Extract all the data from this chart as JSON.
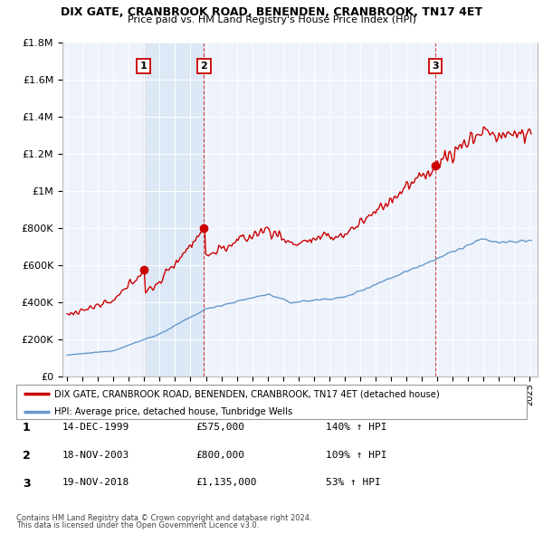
{
  "title": "DIX GATE, CRANBROOK ROAD, BENENDEN, CRANBROOK, TN17 4ET",
  "subtitle": "Price paid vs. HM Land Registry's House Price Index (HPI)",
  "legend_line1": "DIX GATE, CRANBROOK ROAD, BENENDEN, CRANBROOK, TN17 4ET (detached house)",
  "legend_line2": "HPI: Average price, detached house, Tunbridge Wells",
  "footer1": "Contains HM Land Registry data © Crown copyright and database right 2024.",
  "footer2": "This data is licensed under the Open Government Licence v3.0.",
  "sales": [
    {
      "label": "1",
      "date": "14-DEC-1999",
      "price": 575000,
      "pct": "140%",
      "year": 1999.96
    },
    {
      "label": "2",
      "date": "18-NOV-2003",
      "price": 800000,
      "pct": "109%",
      "year": 2003.88
    },
    {
      "label": "3",
      "date": "19-NOV-2018",
      "price": 1135000,
      "pct": "53%",
      "year": 2018.88
    }
  ],
  "table_rows": [
    [
      "1",
      "14-DEC-1999",
      "£575,000",
      "140% ↑ HPI"
    ],
    [
      "2",
      "18-NOV-2003",
      "£800,000",
      "109% ↑ HPI"
    ],
    [
      "3",
      "19-NOV-2018",
      "£1,135,000",
      "53% ↑ HPI"
    ]
  ],
  "red_color": "#cc0000",
  "blue_color": "#6699cc",
  "shade_color": "#dce8f5",
  "background_color": "#eef3fb",
  "ylim": [
    0,
    1800000
  ],
  "xlim_start": 1994.7,
  "xlim_end": 2025.5,
  "yticks": [
    0,
    200000,
    400000,
    600000,
    800000,
    1000000,
    1200000,
    1400000,
    1600000,
    1800000
  ]
}
